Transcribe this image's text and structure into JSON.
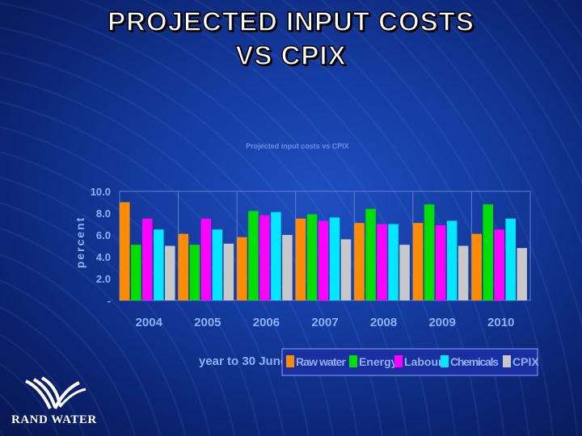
{
  "slide": {
    "title_line1": "PROJECTED INPUT COSTS",
    "title_line2": "VS CPIX"
  },
  "logo": {
    "text": "RAND WATER"
  },
  "colors": {
    "raw_water": "#ff8c00",
    "energy": "#00e000",
    "labour": "#ff00ff",
    "chemicals": "#00e8ff",
    "cpix": "#c8c8c8"
  },
  "chart_data": {
    "type": "bar",
    "title": "Projected input costs vs CPIX",
    "xlabel": "year to 30 June",
    "ylabel": "percent",
    "ylim": [
      0,
      10
    ],
    "yticks": [
      "10.0",
      "8.0",
      "6.0",
      "4.0",
      "2.0",
      "-"
    ],
    "categories": [
      "2004",
      "2005",
      "2006",
      "2007",
      "2008",
      "2009",
      "2010"
    ],
    "legend_position": "bottom-right",
    "series": [
      {
        "name": "Raw water",
        "color": "#ff8c00",
        "values": [
          9.0,
          6.1,
          5.8,
          7.5,
          7.1,
          7.1,
          6.1
        ]
      },
      {
        "name": "Energy",
        "color": "#00e000",
        "values": [
          5.1,
          5.1,
          8.2,
          7.9,
          8.4,
          8.8,
          8.8
        ]
      },
      {
        "name": "Labour",
        "color": "#ff00ff",
        "values": [
          7.5,
          7.5,
          7.8,
          7.3,
          7.0,
          6.9,
          6.5
        ]
      },
      {
        "name": "Chemicals",
        "color": "#00e8ff",
        "values": [
          6.5,
          6.5,
          8.1,
          7.6,
          7.0,
          7.3,
          7.5
        ]
      },
      {
        "name": "CPIX",
        "color": "#c8c8c8",
        "values": [
          5.0,
          5.2,
          6.0,
          5.6,
          5.1,
          5.0,
          4.8
        ]
      }
    ]
  }
}
